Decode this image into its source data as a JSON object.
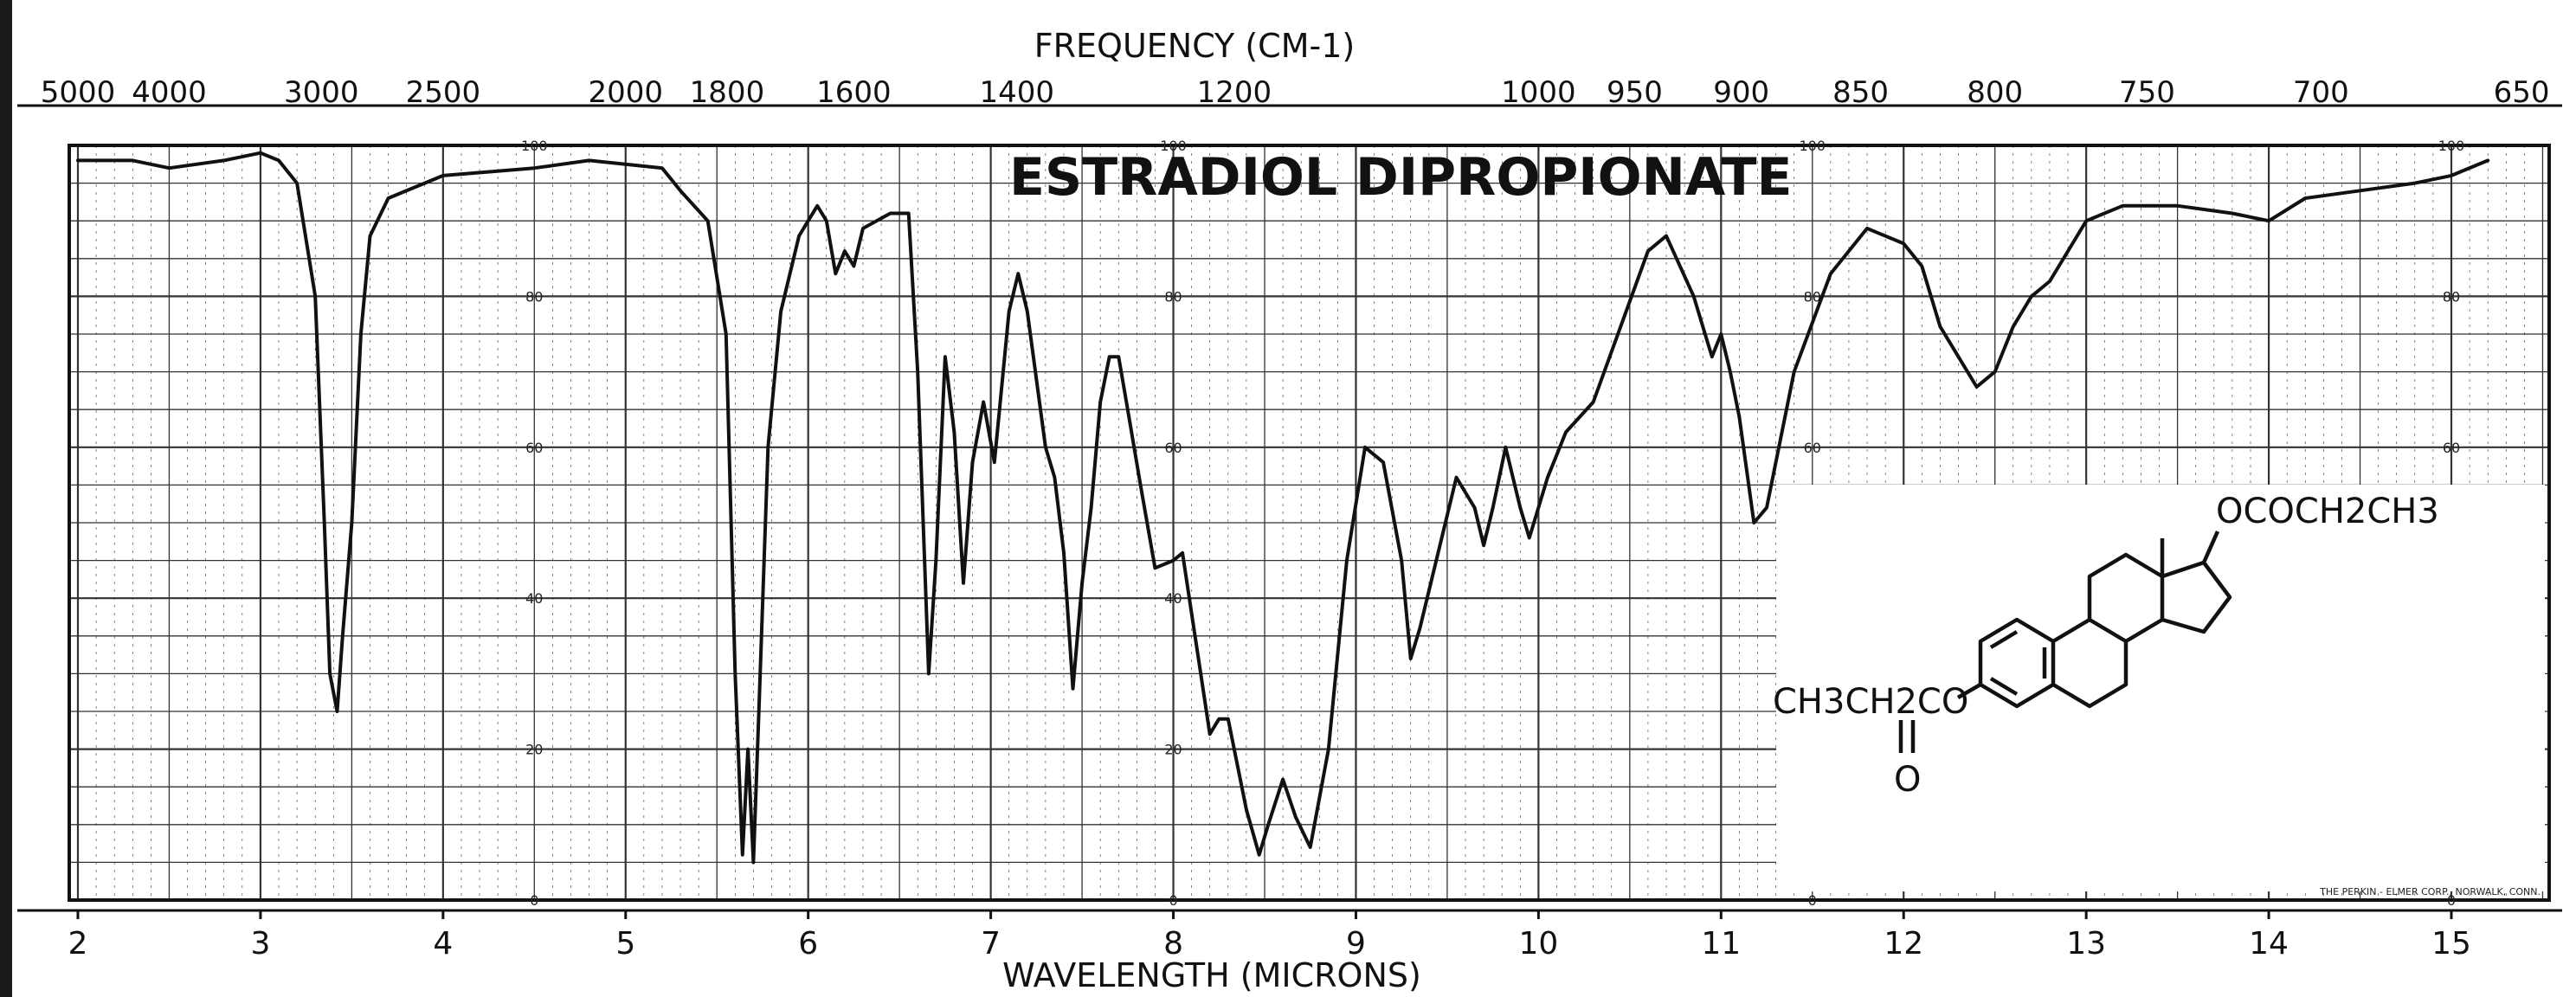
{
  "chart_data": {
    "type": "line",
    "title": "ESTRADIOL DIPROPIONATE",
    "top_axis_label": "FREQUENCY (CM-1)",
    "xlabel": "WAVELENGTH (MICRONS)",
    "ylabel": "",
    "xlim": [
      2,
      15.5
    ],
    "ylim": [
      0,
      100
    ],
    "grid": true,
    "x_ticks": [
      "2",
      "3",
      "4",
      "5",
      "6",
      "7",
      "8",
      "9",
      "10",
      "11",
      "12",
      "13",
      "14",
      "15"
    ],
    "x_tick_values": [
      2,
      3,
      4,
      5,
      6,
      7,
      8,
      9,
      10,
      11,
      12,
      13,
      14,
      15
    ],
    "top_ticks": [
      "5000",
      "4000",
      "3000",
      "2500",
      "2000",
      "1800",
      "1600",
      "1400",
      "1200",
      "1000",
      "950",
      "900",
      "850",
      "800",
      "750",
      "700",
      "650"
    ],
    "top_tick_values": [
      5000,
      4000,
      3000,
      2500,
      2000,
      1800,
      1600,
      1400,
      1200,
      1000,
      950,
      900,
      850,
      800,
      750,
      700,
      650
    ],
    "y_ticks": [
      "0",
      "20",
      "40",
      "60",
      "80",
      "100"
    ],
    "y_tick_values": [
      0,
      20,
      40,
      60,
      80,
      100
    ],
    "y_label_columns": [
      4.5,
      8.0,
      11.5,
      15.0
    ],
    "series": [
      {
        "values": [
          [
            2.0,
            98
          ],
          [
            2.3,
            98
          ],
          [
            2.5,
            97
          ],
          [
            2.8,
            98
          ],
          [
            3.0,
            99
          ],
          [
            3.1,
            98
          ],
          [
            3.2,
            95
          ],
          [
            3.3,
            80
          ],
          [
            3.35,
            50
          ],
          [
            3.38,
            30
          ],
          [
            3.42,
            25
          ],
          [
            3.45,
            35
          ],
          [
            3.5,
            50
          ],
          [
            3.55,
            75
          ],
          [
            3.6,
            88
          ],
          [
            3.7,
            93
          ],
          [
            4.0,
            96
          ],
          [
            4.5,
            97
          ],
          [
            4.8,
            98
          ],
          [
            5.2,
            97
          ],
          [
            5.3,
            94
          ],
          [
            5.45,
            90
          ],
          [
            5.55,
            75
          ],
          [
            5.6,
            30
          ],
          [
            5.64,
            6
          ],
          [
            5.67,
            20
          ],
          [
            5.7,
            5
          ],
          [
            5.73,
            25
          ],
          [
            5.78,
            60
          ],
          [
            5.85,
            78
          ],
          [
            5.95,
            88
          ],
          [
            6.05,
            92
          ],
          [
            6.1,
            90
          ],
          [
            6.15,
            83
          ],
          [
            6.2,
            86
          ],
          [
            6.25,
            84
          ],
          [
            6.3,
            89
          ],
          [
            6.45,
            91
          ],
          [
            6.55,
            91
          ],
          [
            6.6,
            70
          ],
          [
            6.66,
            30
          ],
          [
            6.7,
            45
          ],
          [
            6.75,
            72
          ],
          [
            6.8,
            62
          ],
          [
            6.85,
            42
          ],
          [
            6.9,
            58
          ],
          [
            6.96,
            66
          ],
          [
            7.02,
            58
          ],
          [
            7.1,
            78
          ],
          [
            7.15,
            83
          ],
          [
            7.2,
            78
          ],
          [
            7.3,
            60
          ],
          [
            7.35,
            56
          ],
          [
            7.4,
            46
          ],
          [
            7.45,
            28
          ],
          [
            7.5,
            42
          ],
          [
            7.55,
            52
          ],
          [
            7.6,
            66
          ],
          [
            7.65,
            72
          ],
          [
            7.7,
            72
          ],
          [
            7.75,
            65
          ],
          [
            7.82,
            55
          ],
          [
            7.9,
            44
          ],
          [
            8.0,
            45
          ],
          [
            8.05,
            46
          ],
          [
            8.1,
            38
          ],
          [
            8.15,
            30
          ],
          [
            8.2,
            22
          ],
          [
            8.25,
            24
          ],
          [
            8.3,
            24
          ],
          [
            8.4,
            12
          ],
          [
            8.47,
            6
          ],
          [
            8.52,
            10
          ],
          [
            8.6,
            16
          ],
          [
            8.67,
            11
          ],
          [
            8.75,
            7
          ],
          [
            8.85,
            20
          ],
          [
            8.95,
            45
          ],
          [
            9.05,
            60
          ],
          [
            9.15,
            58
          ],
          [
            9.25,
            45
          ],
          [
            9.3,
            32
          ],
          [
            9.35,
            36
          ],
          [
            9.45,
            46
          ],
          [
            9.55,
            56
          ],
          [
            9.65,
            52
          ],
          [
            9.7,
            47
          ],
          [
            9.75,
            52
          ],
          [
            9.82,
            60
          ],
          [
            9.9,
            52
          ],
          [
            9.95,
            48
          ],
          [
            10.05,
            56
          ],
          [
            10.15,
            62
          ],
          [
            10.3,
            66
          ],
          [
            10.45,
            76
          ],
          [
            10.6,
            86
          ],
          [
            10.7,
            88
          ],
          [
            10.85,
            80
          ],
          [
            10.95,
            72
          ],
          [
            11.0,
            75
          ],
          [
            11.05,
            70
          ],
          [
            11.1,
            64
          ],
          [
            11.18,
            50
          ],
          [
            11.25,
            52
          ],
          [
            11.4,
            70
          ],
          [
            11.6,
            83
          ],
          [
            11.8,
            89
          ],
          [
            12.0,
            87
          ],
          [
            12.1,
            84
          ],
          [
            12.2,
            76
          ],
          [
            12.3,
            72
          ],
          [
            12.4,
            68
          ],
          [
            12.5,
            70
          ],
          [
            12.6,
            76
          ],
          [
            12.7,
            80
          ],
          [
            12.8,
            82
          ],
          [
            12.9,
            86
          ],
          [
            13.0,
            90
          ],
          [
            13.2,
            92
          ],
          [
            13.5,
            92
          ],
          [
            13.8,
            91
          ],
          [
            14.0,
            90
          ],
          [
            14.2,
            93
          ],
          [
            14.5,
            94
          ],
          [
            14.8,
            95
          ],
          [
            15.0,
            96
          ],
          [
            15.2,
            98
          ]
        ]
      }
    ],
    "structure_labels": {
      "top_substituent": "OCOCH2CH3",
      "left_substituent": "CH3CH2CO",
      "carbonyl_oxygen": "O"
    },
    "credit": "THE PERKIN - ELMER CORP., NORWALK, CONN."
  },
  "colors": {
    "ink": "#111111",
    "grid": "#333333",
    "paper": "#ffffff"
  }
}
